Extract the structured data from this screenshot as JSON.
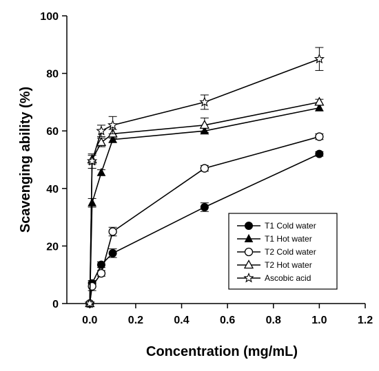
{
  "chart_data": {
    "type": "line",
    "xlabel": "Concentration (mg/mL)",
    "ylabel": "Scavenging ability (%)",
    "xlim": [
      -0.1,
      1.2
    ],
    "ylim": [
      0,
      100
    ],
    "x_ticks": [
      0.0,
      0.2,
      0.4,
      0.6,
      0.8,
      1.0,
      1.2
    ],
    "x_tick_labels": [
      "0.0",
      "0.2",
      "0.4",
      "0.6",
      "0.8",
      "1.0",
      "1.2"
    ],
    "y_ticks": [
      0,
      20,
      40,
      60,
      80,
      100
    ],
    "y_tick_labels": [
      "0",
      "20",
      "40",
      "60",
      "80",
      "100"
    ],
    "grid": false,
    "legend_position": "bottom-right",
    "x": [
      0.0,
      0.01,
      0.05,
      0.1,
      0.5,
      1.0
    ],
    "series": [
      {
        "name": "T1 Cold water",
        "marker": "filled-circle",
        "values": [
          0,
          7,
          13.5,
          17.5,
          33.5,
          52
        ],
        "errors": [
          0,
          1,
          1,
          1.5,
          1.5,
          0.8
        ]
      },
      {
        "name": "T1 Hot water",
        "marker": "filled-triangle",
        "values": [
          0,
          35,
          45.5,
          57,
          60,
          68
        ],
        "errors": [
          0,
          1.5,
          1,
          1,
          1,
          1
        ]
      },
      {
        "name": "T2 Cold water",
        "marker": "open-circle",
        "values": [
          0,
          6,
          10.5,
          25,
          47,
          58
        ],
        "errors": [
          0,
          1.5,
          1,
          1.5,
          1,
          1
        ]
      },
      {
        "name": "T2 Hot water",
        "marker": "open-triangle",
        "values": [
          0,
          50,
          56,
          59,
          62,
          70
        ],
        "errors": [
          0,
          1.5,
          1.5,
          1.5,
          2.5,
          1
        ]
      },
      {
        "name": "Ascobic acid",
        "marker": "open-star",
        "values": [
          0,
          49.5,
          60,
          62,
          70,
          85
        ],
        "errors": [
          0,
          2.5,
          2,
          3,
          2.5,
          4
        ]
      }
    ]
  }
}
